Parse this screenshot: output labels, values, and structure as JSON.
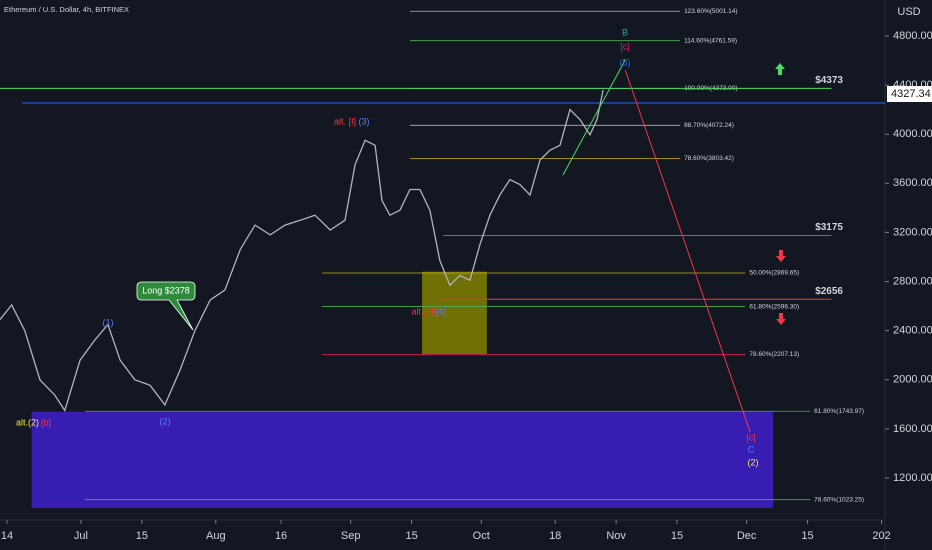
{
  "chart_data": {
    "type": "line",
    "title": "Ethereum / U.S. Dollar, 4h, BITFINEX",
    "y_axis_label": "USD",
    "color": "#b2b5be",
    "x": [
      11.4,
      14.1,
      17.1,
      20.6,
      24.0,
      26.3,
      29.8,
      33.2,
      36.2,
      39.0,
      42.4,
      45.9,
      49.3,
      52.8,
      56.2,
      59.7,
      63.1,
      66.6,
      70.0,
      73.5,
      76.9,
      80.4,
      83.8,
      87.3,
      90.7,
      93.0,
      95.3,
      97.6,
      99.2,
      101.0,
      103.3,
      105.6,
      107.9,
      110.2,
      112.5,
      114.8,
      117.1,
      119.4,
      121.7,
      124.0,
      126.3,
      128.6,
      130.9,
      133.2,
      135.5,
      137.8,
      140.1,
      142.4,
      144.7,
      147.0,
      148.6,
      150.0
    ],
    "values": [
      2490,
      2610,
      2400,
      1998,
      1875,
      1750,
      2160,
      2325,
      2450,
      2160,
      2000,
      1955,
      1795,
      2080,
      2400,
      2650,
      2730,
      3060,
      3260,
      3180,
      3260,
      3300,
      3340,
      3220,
      3300,
      3750,
      3950,
      3910,
      3460,
      3340,
      3380,
      3550,
      3550,
      3380,
      2970,
      2770,
      2850,
      2810,
      3100,
      3340,
      3505,
      3630,
      3590,
      3505,
      3790,
      3870,
      3910,
      4200,
      4120,
      3995,
      4120,
      4360
    ],
    "xlim": [
      11.4,
      214.8
    ],
    "ylim": [
      858,
      5093
    ],
    "xticks": [
      {
        "value": 13,
        "label": "14"
      },
      {
        "value": 30,
        "label": "Jul"
      },
      {
        "value": 44,
        "label": "15"
      },
      {
        "value": 61,
        "label": "Aug"
      },
      {
        "value": 76,
        "label": "16"
      },
      {
        "value": 92,
        "label": "Sep"
      },
      {
        "value": 106,
        "label": "15"
      },
      {
        "value": 122,
        "label": "Oct"
      },
      {
        "value": 139,
        "label": "18"
      },
      {
        "value": 153,
        "label": "Nov"
      },
      {
        "value": 167,
        "label": "15"
      },
      {
        "value": 183,
        "label": "Dec"
      },
      {
        "value": 197,
        "label": "15"
      },
      {
        "value": 214,
        "label": "202"
      }
    ],
    "yticks": [
      {
        "value": 1200,
        "label": "1200.00"
      },
      {
        "value": 1600,
        "label": "1600.00"
      },
      {
        "value": 2000,
        "label": "2000.00"
      },
      {
        "value": 2400,
        "label": "2400.00"
      },
      {
        "value": 2800,
        "label": "2800.00"
      },
      {
        "value": 3200,
        "label": "3200.00"
      },
      {
        "value": 3600,
        "label": "3600.00"
      },
      {
        "value": 4000,
        "label": "4000.00"
      },
      {
        "value": 4400,
        "label": "4400.00"
      },
      {
        "value": 4800,
        "label": "4800.00"
      }
    ],
    "last_price": {
      "value": 4327.34,
      "label": "4327.34"
    },
    "horizontal_lines": [
      {
        "value": 4254,
        "color": "#2962ff"
      }
    ],
    "zones": [
      {
        "xlim": [
          108.4,
          123.3
        ],
        "ylim": [
          2210,
          2880
        ],
        "color": "#808000"
      },
      {
        "xlim": [
          18.7,
          189.1
        ],
        "ylim": [
          955,
          1740
        ],
        "color": "#3f1fcc"
      }
    ],
    "levels": [
      {
        "label": "123.60%(5001.14)",
        "value": 5001.14,
        "x_range": [
          105.6,
          167.7
        ],
        "color": "#b2b5be"
      },
      {
        "label": "114.60%(4761.59)",
        "value": 4761.59,
        "x_range": [
          105.6,
          167.7
        ],
        "color": "#4caf50"
      },
      {
        "label": "100.00%(4373.00)",
        "value": 4373.0,
        "x_range": [
          105.6,
          167.7
        ],
        "color": "#b2b5be"
      },
      {
        "label": "88.70%(4072.24)",
        "value": 4072.24,
        "x_range": [
          105.6,
          167.7
        ],
        "color": "#b2b5be"
      },
      {
        "label": "78.60%(3803.42)",
        "value": 3803.42,
        "x_range": [
          105.6,
          167.7
        ],
        "color": "#c9b400"
      },
      {
        "label": "50.00%(2869.65)",
        "value": 2869.65,
        "x_range": [
          85.4,
          182.7
        ],
        "color": "#c9b400"
      },
      {
        "label": "61.80%(2596.30)",
        "value": 2596.3,
        "x_range": [
          85.4,
          182.7
        ],
        "color": "#4caf50"
      },
      {
        "label": "78.60%(2207.13)",
        "value": 2207.13,
        "x_range": [
          85.4,
          182.7
        ],
        "color": "#e91e63"
      },
      {
        "label": "61.80%(1743.97)",
        "value": 1743.97,
        "x_range": [
          30.9,
          197.6
        ],
        "color": "#4caf50"
      },
      {
        "label": "78.60%(1023.25)",
        "value": 1023.25,
        "x_range": [
          30.9,
          197.6
        ],
        "color": "#4caf50"
      }
    ],
    "price_targets": [
      {
        "label": "$4373",
        "value": 4373,
        "x_range": [
          11.4,
          202.5
        ],
        "color": "#4cd964"
      },
      {
        "label": "$3175",
        "value": 3175,
        "x_range": [
          113.3,
          202.5
        ],
        "color": "#f23645"
      },
      {
        "label": "$2656",
        "value": 2656,
        "x_range": [
          112.1,
          202.5
        ],
        "color": "#f23645"
      }
    ],
    "trend_lines": [
      {
        "x": [
          140.8,
          155.1
        ],
        "y": [
          3668,
          4605
        ],
        "color": "#4cd964"
      },
      {
        "x": [
          155.1,
          183.8
        ],
        "y": [
          4523,
          1575
        ],
        "color": "#f23645"
      }
    ],
    "annotations": [
      {
        "text": "B",
        "color": "#26a69a"
      },
      {
        "text": "[c]",
        "color": "#e91e63"
      },
      {
        "text": "(5)",
        "color": "#2962ff"
      },
      {
        "text": "alt. [I]",
        "color": "#f23645"
      },
      {
        "text": "(3)",
        "color": "#5b7cff"
      },
      {
        "text": "(1)",
        "color": "#5b7cff"
      },
      {
        "text": "(2)",
        "color": "#5b7cff"
      },
      {
        "text": "alt.(2)",
        "color": "#ffeb3b"
      },
      {
        "text": "[b]",
        "color": "#f23645"
      },
      {
        "text": "alt. [II]",
        "color": "#f23645"
      },
      {
        "text": "(4)",
        "color": "#5b7cff"
      },
      {
        "text": "[c]",
        "color": "#f23645"
      },
      {
        "text": "C",
        "color": "#5b7cff"
      },
      {
        "text": "(2)",
        "color": "#ffeb3b"
      }
    ],
    "callout": {
      "text": "Long $2378",
      "color": "#2e8b3c"
    }
  }
}
